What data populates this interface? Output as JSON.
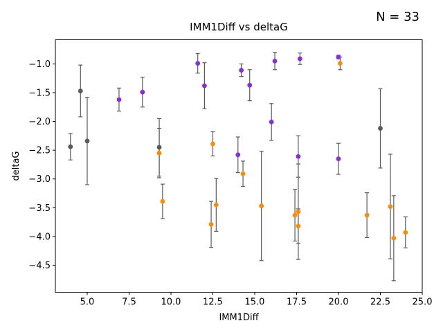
{
  "chart_data": {
    "type": "scatter",
    "title": "IMM1Diff vs deltaG",
    "xlabel": "IMM1Diff",
    "ylabel": "deltaG",
    "annotation": "N = 33",
    "xlim": [
      3.1,
      25.0
    ],
    "ylim": [
      -4.97,
      -0.58
    ],
    "xticks": [
      5.0,
      7.5,
      10.0,
      12.5,
      15.0,
      17.5,
      20.0,
      22.5,
      25.0
    ],
    "xtick_labels": [
      "5.0",
      "7.5",
      "10.0",
      "12.5",
      "15.0",
      "17.5",
      "20.0",
      "22.5",
      "25.0"
    ],
    "yticks": [
      -1.0,
      -1.5,
      -2.0,
      -2.5,
      -3.0,
      -3.5,
      -4.0,
      -4.5
    ],
    "ytick_labels": [
      "−1.0",
      "−1.5",
      "−2.0",
      "−2.5",
      "−3.0",
      "−3.5",
      "−4.0",
      "−4.5"
    ],
    "grid": false,
    "legend": "none",
    "colors": {
      "gray": "#595959",
      "purple": "#8a2be2",
      "orange": "#ff8c00",
      "errorbar": "#595959"
    },
    "series": [
      {
        "color_key": "gray",
        "points": [
          {
            "x": 4.0,
            "y": -2.44,
            "err": 0.23
          },
          {
            "x": 4.6,
            "y": -1.47,
            "err": 0.45
          },
          {
            "x": 5.0,
            "y": -2.34,
            "err": 0.76
          },
          {
            "x": 9.3,
            "y": -2.45,
            "err": 0.5
          },
          {
            "x": 22.5,
            "y": -2.12,
            "err": 0.69
          }
        ]
      },
      {
        "color_key": "purple",
        "points": [
          {
            "x": 6.9,
            "y": -1.62,
            "err": 0.2
          },
          {
            "x": 8.3,
            "y": -1.49,
            "err": 0.26
          },
          {
            "x": 11.6,
            "y": -0.99,
            "err": 0.17
          },
          {
            "x": 12.0,
            "y": -1.38,
            "err": 0.4
          },
          {
            "x": 14.0,
            "y": -2.58,
            "err": 0.31
          },
          {
            "x": 14.2,
            "y": -1.11,
            "err": 0.11
          },
          {
            "x": 14.7,
            "y": -1.37,
            "err": 0.27
          },
          {
            "x": 16.0,
            "y": -2.01,
            "err": 0.32
          },
          {
            "x": 16.2,
            "y": -0.95,
            "err": 0.15
          },
          {
            "x": 17.6,
            "y": -2.61,
            "err": 0.36
          },
          {
            "x": 17.7,
            "y": -0.91,
            "err": 0.1
          },
          {
            "x": 20.0,
            "y": -2.65,
            "err": 0.27
          },
          {
            "x": 20.0,
            "y": -0.88,
            "err": 0.03
          }
        ]
      },
      {
        "color_key": "orange",
        "points": [
          {
            "x": 9.3,
            "y": -2.55,
            "err": 0.43
          },
          {
            "x": 9.5,
            "y": -3.39,
            "err": 0.3
          },
          {
            "x": 12.4,
            "y": -3.79,
            "err": 0.4
          },
          {
            "x": 12.5,
            "y": -2.39,
            "err": 0.21
          },
          {
            "x": 12.7,
            "y": -3.45,
            "err": 0.46
          },
          {
            "x": 14.3,
            "y": -2.91,
            "err": 0.22
          },
          {
            "x": 15.4,
            "y": -3.47,
            "err": 0.95
          },
          {
            "x": 17.4,
            "y": -3.63,
            "err": 0.45
          },
          {
            "x": 17.6,
            "y": -3.57,
            "err": 0.83
          },
          {
            "x": 17.6,
            "y": -3.82,
            "err": 0.3
          },
          {
            "x": 20.1,
            "y": -0.99,
            "err": 0.11
          },
          {
            "x": 21.7,
            "y": -3.63,
            "err": 0.39
          },
          {
            "x": 23.1,
            "y": -3.48,
            "err": 0.91
          },
          {
            "x": 23.3,
            "y": -4.03,
            "err": 0.74
          },
          {
            "x": 24.0,
            "y": -3.93,
            "err": 0.27
          }
        ]
      }
    ]
  }
}
